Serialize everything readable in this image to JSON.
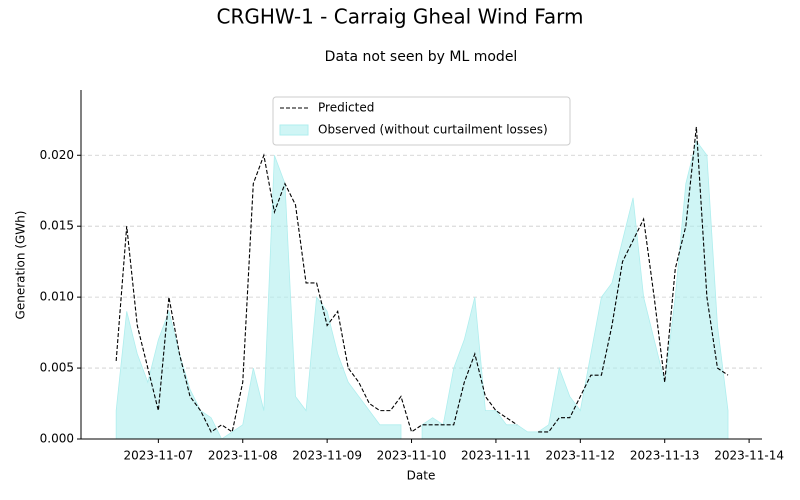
{
  "chart_data": {
    "type": "line",
    "title": "CRGHW-1 - Carraig Gheal Wind Farm",
    "subtitle": "Data not seen by ML model",
    "xlabel": "Date",
    "ylabel": "Generation (GWh)",
    "x": [
      "2023-11-06 12:00",
      "2023-11-06 15:00",
      "2023-11-06 18:00",
      "2023-11-06 21:00",
      "2023-11-07 00:00",
      "2023-11-07 03:00",
      "2023-11-07 06:00",
      "2023-11-07 09:00",
      "2023-11-07 12:00",
      "2023-11-07 15:00",
      "2023-11-07 18:00",
      "2023-11-07 21:00",
      "2023-11-08 00:00",
      "2023-11-08 03:00",
      "2023-11-08 06:00",
      "2023-11-08 09:00",
      "2023-11-08 12:00",
      "2023-11-08 15:00",
      "2023-11-08 18:00",
      "2023-11-08 21:00",
      "2023-11-09 00:00",
      "2023-11-09 03:00",
      "2023-11-09 06:00",
      "2023-11-09 09:00",
      "2023-11-09 12:00",
      "2023-11-09 15:00",
      "2023-11-09 18:00",
      "2023-11-09 21:00",
      "2023-11-10 00:00",
      "2023-11-10 03:00",
      "2023-11-10 06:00",
      "2023-11-10 09:00",
      "2023-11-10 12:00",
      "2023-11-10 15:00",
      "2023-11-10 18:00",
      "2023-11-10 21:00",
      "2023-11-11 00:00",
      "2023-11-11 03:00",
      "2023-11-11 06:00",
      "2023-11-11 09:00",
      "2023-11-11 12:00",
      "2023-11-11 15:00",
      "2023-11-11 18:00",
      "2023-11-11 21:00",
      "2023-11-12 00:00",
      "2023-11-12 03:00",
      "2023-11-12 06:00",
      "2023-11-12 09:00",
      "2023-11-12 12:00",
      "2023-11-12 15:00",
      "2023-11-12 18:00",
      "2023-11-12 21:00",
      "2023-11-13 00:00",
      "2023-11-13 03:00",
      "2023-11-13 06:00",
      "2023-11-13 09:00",
      "2023-11-13 12:00",
      "2023-11-13 15:00",
      "2023-11-13 18:00"
    ],
    "series": [
      {
        "name": "Predicted",
        "style": "dashed-line",
        "color": "#000000",
        "values": [
          0.0055,
          0.015,
          0.008,
          0.005,
          0.002,
          0.01,
          0.006,
          0.003,
          0.002,
          0.0005,
          0.001,
          0.0005,
          0.004,
          0.018,
          0.02,
          0.016,
          0.018,
          0.0165,
          0.011,
          0.011,
          0.008,
          0.009,
          0.005,
          0.004,
          0.0025,
          0.002,
          0.002,
          0.003,
          0.0005,
          0.001,
          0.001,
          0.001,
          0.001,
          0.004,
          0.006,
          0.003,
          0.002,
          0.0015,
          0.001,
          null,
          0.0005,
          0.0005,
          0.0015,
          0.0015,
          0.003,
          0.0045,
          0.0045,
          0.008,
          0.0125,
          0.014,
          0.0155,
          0.01,
          0.004,
          0.012,
          0.015,
          0.022,
          0.01,
          0.005,
          0.0045
        ]
      },
      {
        "name": "Observed (without curtailment losses)",
        "style": "area",
        "color": "#afeeee",
        "values": [
          0.002,
          0.009,
          0.006,
          0.004,
          0.007,
          0.009,
          0.006,
          0.0035,
          0.002,
          0.0015,
          0,
          0.0005,
          0.001,
          0.005,
          0.002,
          0.02,
          0.018,
          0.003,
          0.002,
          0.01,
          0.009,
          0.006,
          0.004,
          0.003,
          0.002,
          0.001,
          0.001,
          0.001,
          null,
          0.001,
          0.0015,
          0.001,
          0.005,
          0.007,
          0.01,
          0.002,
          0.002,
          0.001,
          0.001,
          0.0005,
          0.0005,
          0.001,
          0.005,
          0.003,
          0.002,
          0.006,
          0.01,
          0.011,
          0.014,
          0.017,
          0.01,
          0.007,
          0.004,
          0.01,
          0.018,
          0.021,
          0.02,
          0.008,
          0.002
        ]
      }
    ],
    "xlim": [
      "2023-11-06 02:00",
      "2023-11-14 03:40"
    ],
    "xticks": [
      "2023-11-07",
      "2023-11-08",
      "2023-11-09",
      "2023-11-10",
      "2023-11-11",
      "2023-11-12",
      "2023-11-13",
      "2023-11-14"
    ],
    "ylim": [
      0,
      0.0246
    ],
    "yticks": [
      {
        "value": 0,
        "label": "0.000"
      },
      {
        "value": 0.005,
        "label": "0.005"
      },
      {
        "value": 0.01,
        "label": "0.010"
      },
      {
        "value": 0.015,
        "label": "0.015"
      },
      {
        "value": 0.02,
        "label": "0.020"
      }
    ],
    "grid": true,
    "legend": "upper center"
  }
}
